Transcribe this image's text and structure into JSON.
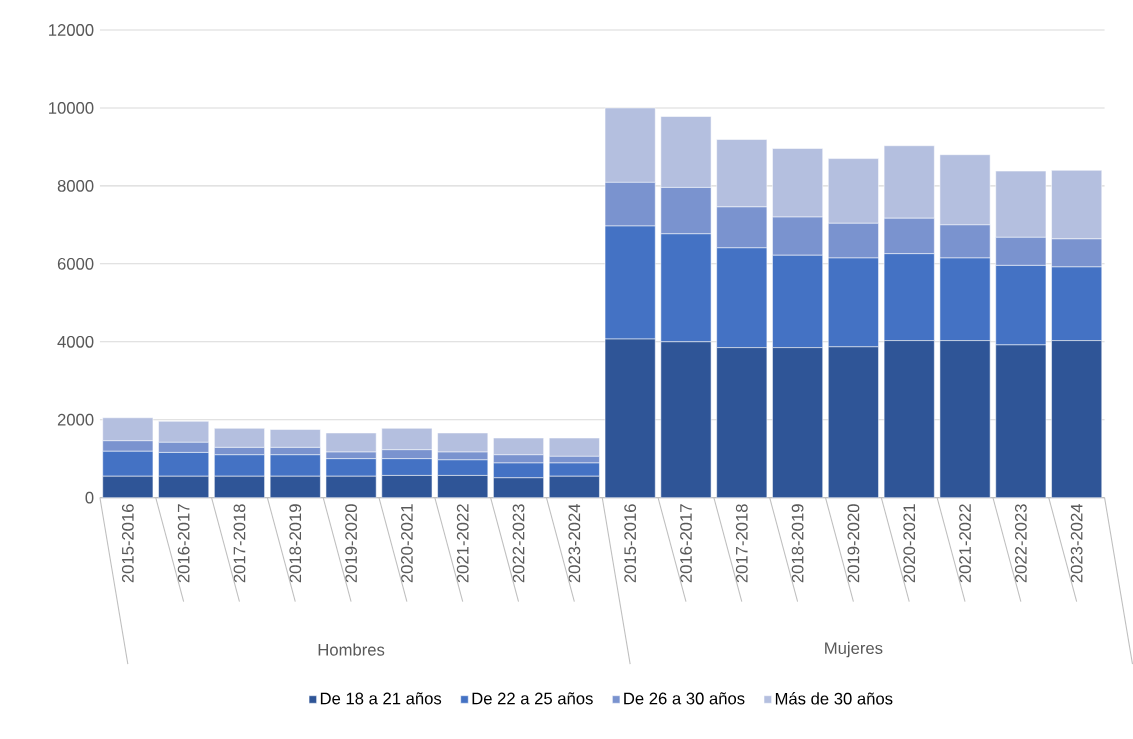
{
  "chart_data": {
    "type": "bar",
    "stacked": true,
    "categories": [
      "2015-2016",
      "2016-2017",
      "2017-2018",
      "2018-2019",
      "2019-2020",
      "2020-2021",
      "2021-2022",
      "2022-2023",
      "2023-2024",
      "2015-2016",
      "2016-2017",
      "2017-2018",
      "2018-2019",
      "2019-2020",
      "2020-2021",
      "2021-2022",
      "2022-2023",
      "2023-2024"
    ],
    "series": [
      {
        "name": "De 18 a 21 años",
        "color": "#2f5597",
        "values": [
          550,
          550,
          550,
          550,
          550,
          570,
          570,
          510,
          550,
          4070,
          4000,
          3850,
          3850,
          3870,
          4030,
          4030,
          3920,
          4030
        ]
      },
      {
        "name": "De 22 a 25 años",
        "color": "#4472c4",
        "values": [
          640,
          610,
          550,
          550,
          450,
          430,
          400,
          380,
          340,
          2900,
          2770,
          2560,
          2370,
          2280,
          2230,
          2120,
          2040,
          1890
        ]
      },
      {
        "name": "De 26 a 30 años",
        "color": "#7a93cf",
        "values": [
          270,
          260,
          190,
          190,
          170,
          230,
          200,
          210,
          170,
          1120,
          1190,
          1050,
          980,
          890,
          910,
          850,
          720,
          720
        ]
      },
      {
        "name": "Más de 30 años",
        "color": "#b4bfdf",
        "values": [
          590,
          540,
          490,
          460,
          490,
          550,
          490,
          430,
          470,
          1910,
          1820,
          1730,
          1760,
          1660,
          1860,
          1800,
          1700,
          1760
        ]
      }
    ],
    "annotations": [
      "Hombres",
      "Mujeres"
    ],
    "ylim": [
      0,
      12000
    ],
    "yticks": [
      0,
      2000,
      4000,
      6000,
      8000,
      10000,
      12000
    ],
    "grid": "y",
    "legend": "bottom"
  }
}
